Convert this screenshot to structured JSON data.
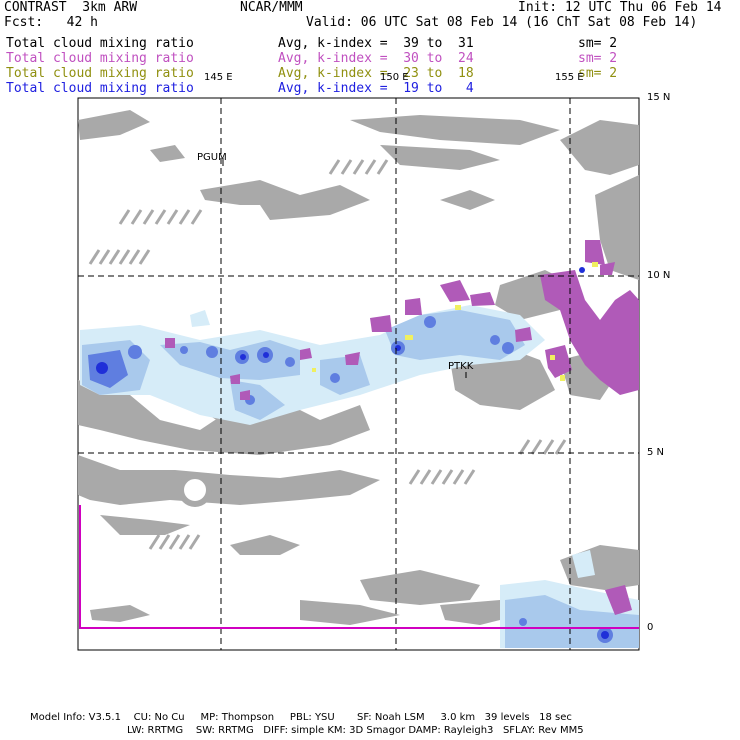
{
  "header": {
    "model": "CONTRAST  3km ARW",
    "org": "NCAR/MMM",
    "init": "Init: 12 UTC Thu 06 Feb 14",
    "fcst": "Fcst:   42 h",
    "valid": "Valid: 06 UTC Sat 08 Feb 14 (16 ChT Sat 08 Feb 14)"
  },
  "legend": [
    {
      "label": "Total cloud mixing ratio",
      "avg": "Avg, k-index =  39 to  31",
      "sm": "sm= 2",
      "color": "#000000"
    },
    {
      "label": "Total cloud mixing ratio",
      "avg": "Avg, k-index =  30 to  24",
      "sm": "sm= 2",
      "color": "#c050c0"
    },
    {
      "label": "Total cloud mixing ratio",
      "avg": "Avg, k-index =  23 to  18",
      "sm": "sm= 2",
      "color": "#909010"
    },
    {
      "label": "Total cloud mixing ratio",
      "avg": "Avg, k-index =  19 to   4",
      "sm": "",
      "color": "#2020e0"
    }
  ],
  "map": {
    "lon_labels": [
      "145 E",
      "150 E",
      "155 E"
    ],
    "lat_labels": [
      "15 N",
      "10 N",
      "5 N",
      "0"
    ],
    "stations": [
      "PGUM",
      "PTKK"
    ],
    "colors": {
      "land_gray": "#a9a9a9",
      "cloud_light": "#d6ecf8",
      "cloud_mid": "#a9c9ec",
      "cloud_dense": "#5f7ee0",
      "cloud_core": "#1f2fd8",
      "magenta": "#b05ab8",
      "yellow": "#f0f060",
      "equator_line": "#d000c0"
    }
  },
  "footer": {
    "line1": "Model Info: V3.5.1    CU: No Cu     MP: Thompson     PBL: YSU       SF: Noah LSM     3.0 km   39 levels   18 sec",
    "line2": "LW: RRTMG    SW: RRTMG   DIFF: simple KM: 3D Smagor DAMP: Rayleigh3   SFLAY: Rev MM5"
  }
}
